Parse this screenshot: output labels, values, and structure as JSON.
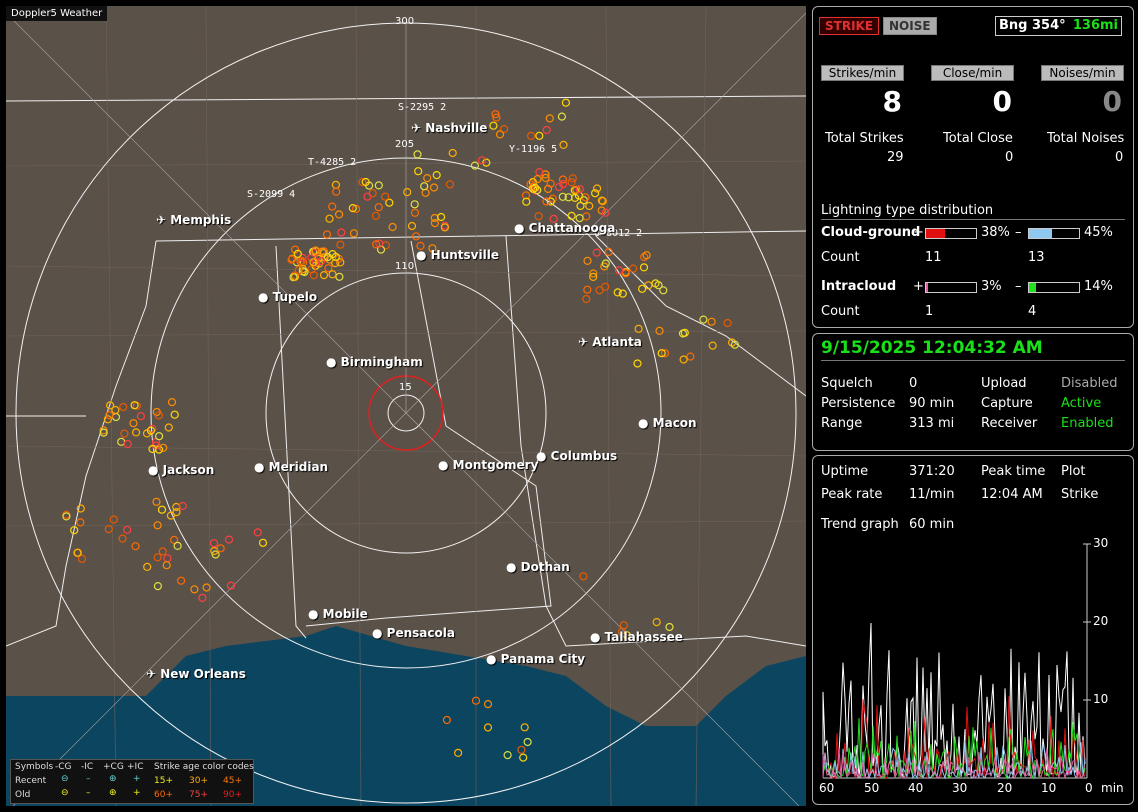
{
  "map": {
    "title": "Doppler5 Weather",
    "rings": [
      {
        "label": "300"
      },
      {
        "label": "205"
      },
      {
        "label": "110"
      },
      {
        "label": "15"
      }
    ],
    "cities": [
      {
        "name": "Nashville",
        "airport": true
      },
      {
        "name": "Memphis",
        "airport": true
      },
      {
        "name": "Chattanooga",
        "airport": false
      },
      {
        "name": "Huntsville",
        "airport": false
      },
      {
        "name": "Tupelo",
        "airport": false
      },
      {
        "name": "Birmingham",
        "airport": false
      },
      {
        "name": "Atlanta",
        "airport": true
      },
      {
        "name": "Macon",
        "airport": false
      },
      {
        "name": "Jackson",
        "airport": false
      },
      {
        "name": "Meridian",
        "airport": false
      },
      {
        "name": "Montgomery",
        "airport": false
      },
      {
        "name": "Columbus",
        "airport": false
      },
      {
        "name": "Dothan",
        "airport": false
      },
      {
        "name": "Mobile",
        "airport": false
      },
      {
        "name": "Pensacola",
        "airport": false
      },
      {
        "name": "Tallahassee",
        "airport": false
      },
      {
        "name": "Panama City",
        "airport": false
      },
      {
        "name": "New Orleans",
        "airport": true
      }
    ],
    "storms": [
      "S-2295 2",
      "T-4285 2",
      "S-2099 4",
      "Y-1196 5",
      "U-8012 2"
    ],
    "legend": {
      "symbols_label": "Symbols",
      "cg_minus": "-CG",
      "ic_minus": "-IC",
      "cg_plus": "+CG",
      "ic_plus": "+IC",
      "age_label": "Strike age color codes",
      "recent": "Recent",
      "old": "Old",
      "recent_codes": [
        "15+",
        "30+",
        "45+"
      ],
      "old_codes": [
        "60+",
        "75+",
        "90+"
      ]
    }
  },
  "top": {
    "strike_button": "STRIKE",
    "noise_button": "NOISE",
    "bearing": "Bng 354°",
    "distance": "136mi",
    "strikes_per_min_label": "Strikes/min",
    "close_per_min_label": "Close/min",
    "noises_per_min_label": "Noises/min",
    "strikes_per_min": "8",
    "close_per_min": "0",
    "noises_per_min": "0",
    "total_strikes_label": "Total Strikes",
    "total_close_label": "Total Close",
    "total_noises_label": "Total Noises",
    "total_strikes": "29",
    "total_close": "0",
    "total_noises": "0",
    "distribution_title": "Lightning type distribution",
    "cg_label": "Cloud-ground",
    "ic_label": "Intracloud",
    "count_label": "Count",
    "plus": "+",
    "minus": "–",
    "cg_plus_pct": "38%",
    "cg_minus_pct": "45%",
    "ic_plus_pct": "3%",
    "ic_minus_pct": "14%",
    "cg_plus_count": "11",
    "cg_minus_count": "13",
    "ic_plus_count": "1",
    "ic_minus_count": "4",
    "cg_plus_frac": 0.38,
    "cg_minus_frac": 0.45,
    "ic_plus_frac": 0.03,
    "ic_minus_frac": 0.14,
    "colors": {
      "cg_plus": "#e01010",
      "cg_minus": "#8ec8f0",
      "ic_plus": "#e060a0",
      "ic_minus": "#20e020"
    }
  },
  "status": {
    "datetime": "9/15/2025 12:04:32 AM",
    "squelch_label": "Squelch",
    "squelch": "0",
    "persistence_label": "Persistence",
    "persistence": "90 min",
    "range_label": "Range",
    "range": "313 mi",
    "upload_label": "Upload",
    "upload": "Disabled",
    "capture_label": "Capture",
    "capture": "Active",
    "receiver_label": "Receiver",
    "receiver": "Enabled"
  },
  "trend": {
    "uptime_label": "Uptime",
    "uptime": "371:20",
    "peak_time_label": "Peak time",
    "peak_time": "12:04 AM",
    "plot_label": "Plot",
    "plot": "Strike",
    "peak_rate_label": "Peak rate",
    "peak_rate": "11/min",
    "trend_graph_label": "Trend graph",
    "trend_graph": "60 min",
    "y_ticks": [
      "30",
      "20",
      "10"
    ],
    "x_ticks": [
      "60",
      "50",
      "40",
      "30",
      "20",
      "10",
      "0"
    ],
    "x_unit": "min"
  }
}
